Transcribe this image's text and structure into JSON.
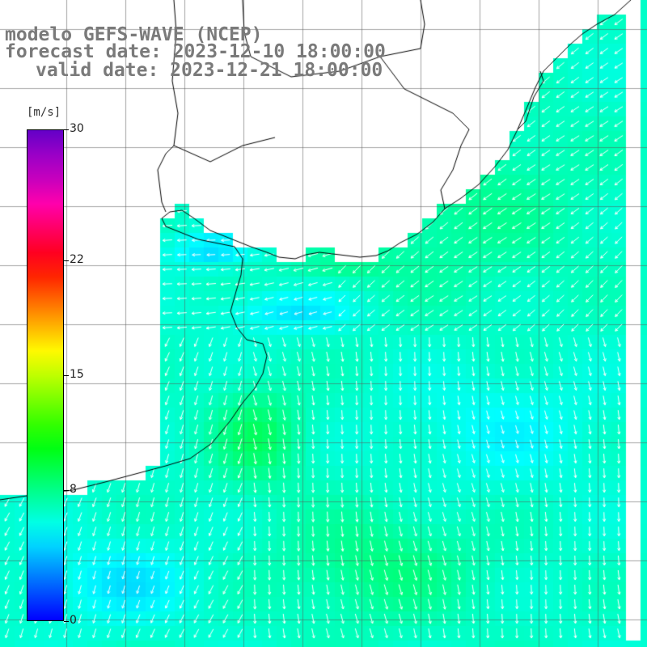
{
  "title": {
    "model": "modelo GEFS-WAVE (NCEP)",
    "forecast": "forecast date: 2023-12-10 18:00:00",
    "valid": "valid date: 2023-12-21 18:00:00"
  },
  "colorbar": {
    "unit": "[m/s]",
    "ticks": [
      {
        "label": "30",
        "value": 30
      },
      {
        "label": "22",
        "value": 22
      },
      {
        "label": "15",
        "value": 15
      },
      {
        "label": "8",
        "value": 8
      },
      {
        "label": "0",
        "value": 0
      }
    ],
    "min": 0,
    "max": 30
  },
  "map": {
    "grid": true,
    "land_color": "#ffffff",
    "ocean_background": "#ffffff",
    "arrow_color": "#ffffff",
    "coastline_color": "#000000"
  },
  "colors": {
    "title": "#7a7a7a"
  }
}
